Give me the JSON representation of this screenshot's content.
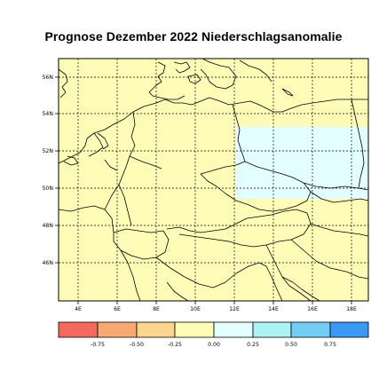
{
  "title": "Prognose Dezember 2022 Niederschlagsanomalie",
  "map": {
    "lat_labels": [
      "56N",
      "54N",
      "52N",
      "50N",
      "48N",
      "46N"
    ],
    "lon_labels": [
      "4E",
      "6E",
      "8E",
      "10E",
      "12E",
      "14E",
      "16E",
      "18E"
    ],
    "base_color": "#fffcb8",
    "anomaly_color": "#e3fefe"
  },
  "legend": {
    "labels": [
      "-0.75",
      "-0.50",
      "-0.25",
      "0.00",
      "0.25",
      "0.50",
      "0.75"
    ],
    "colors": [
      "#f46a5e",
      "#f8a872",
      "#fbd48e",
      "#fffcb8",
      "#e3fefe",
      "#aef3f4",
      "#74cdf4",
      "#3b98f4"
    ]
  }
}
